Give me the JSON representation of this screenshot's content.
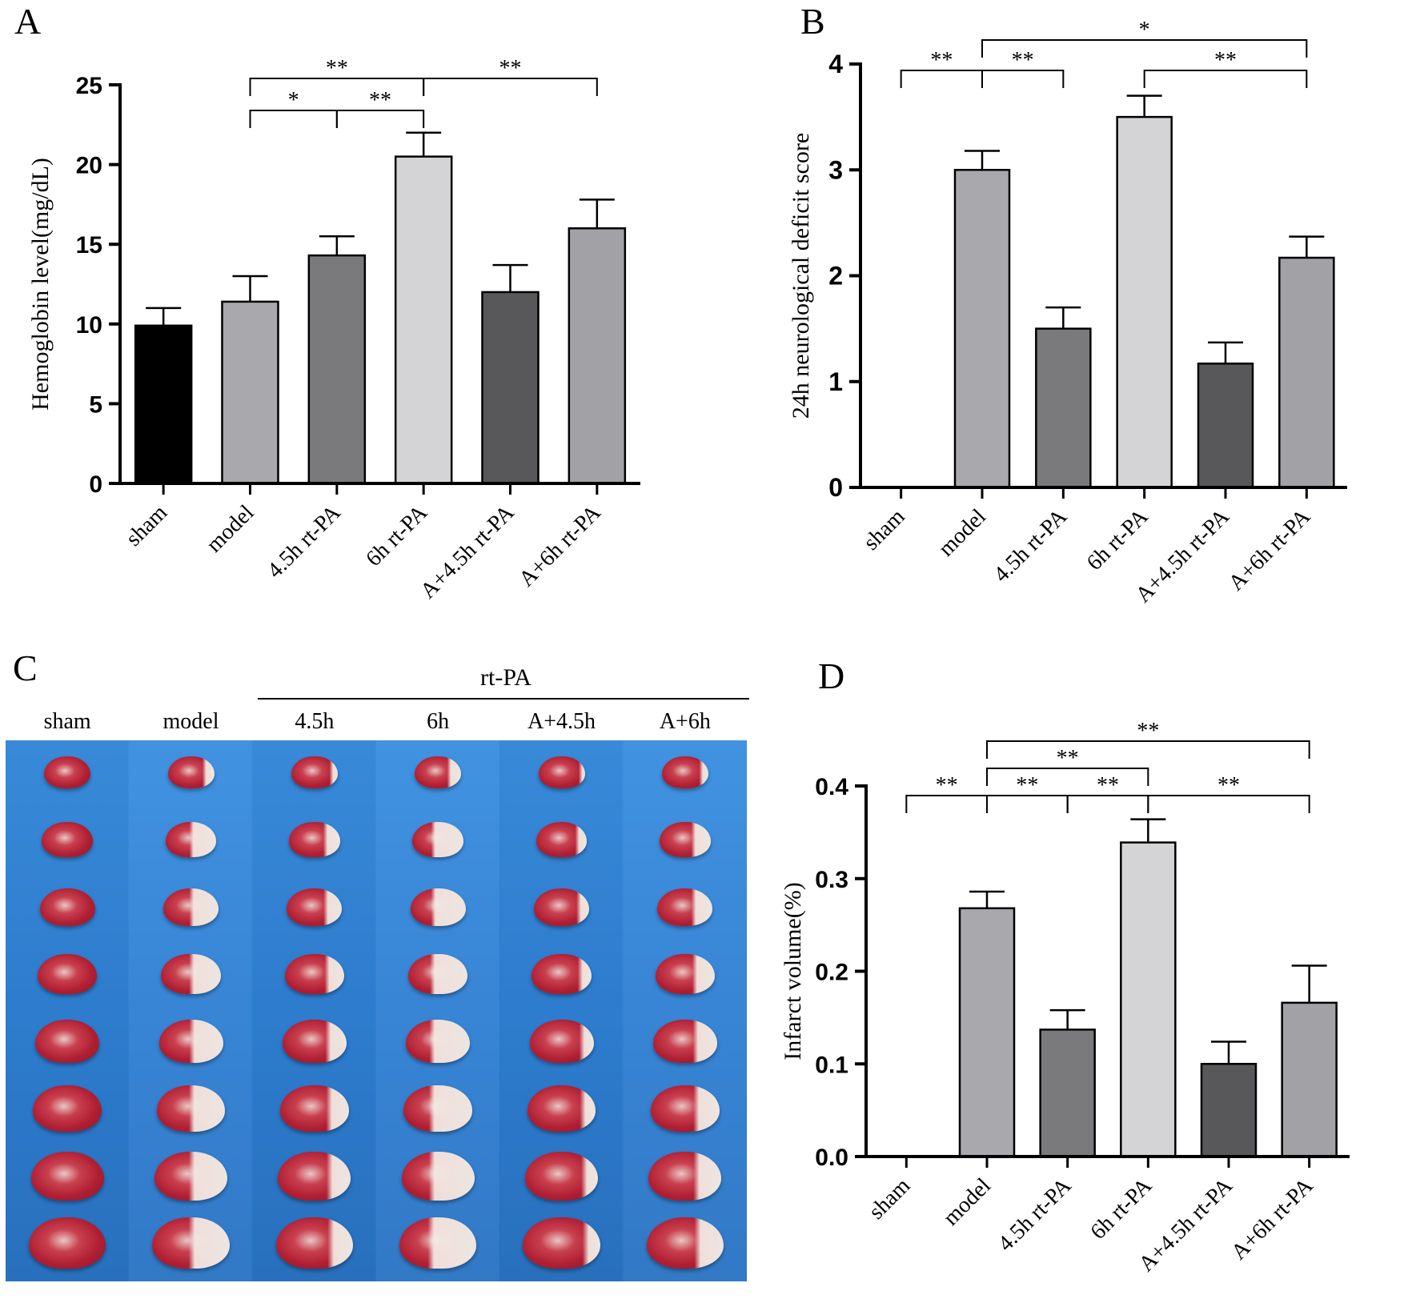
{
  "panels": {
    "a": "A",
    "b": "B",
    "c": "C",
    "d": "D"
  },
  "stars": {
    "one": "*",
    "two": "**"
  },
  "chart_data": [
    {
      "type": "bar",
      "title": "",
      "ylabel": "Hemoglobin level(mg/dL)",
      "xlabel": "",
      "categories": [
        "sham",
        "model",
        "4.5h rt-PA",
        "6h rt-PA",
        "A+4.5h rt-PA",
        "A+6h rt-PA"
      ],
      "values": [
        9.9,
        11.4,
        14.3,
        20.5,
        12.0,
        16.0
      ],
      "errors": [
        1.1,
        1.6,
        1.2,
        1.5,
        1.7,
        1.8
      ],
      "colors": [
        "#000000",
        "#a9a8ad",
        "#7a7a7c",
        "#d4d4d6",
        "#58585a",
        "#a2a1a6"
      ],
      "ylim": [
        0,
        25
      ],
      "yticks": [
        "0",
        "5",
        "10",
        "15",
        "20",
        "25"
      ],
      "significance": [
        {
          "from": 1,
          "to": 3,
          "label": "**",
          "level": 2
        },
        {
          "from": 3,
          "to": 5,
          "label": "**",
          "level": 2
        },
        {
          "from": 1,
          "to": 2,
          "label": "*",
          "level": 1
        },
        {
          "from": 2,
          "to": 3,
          "label": "**",
          "level": 1
        }
      ]
    },
    {
      "type": "bar",
      "title": "",
      "ylabel": "24h neurological deficit score",
      "xlabel": "",
      "categories": [
        "sham",
        "model",
        "4.5h rt-PA",
        "6h rt-PA",
        "A+4.5h rt-PA",
        "A+6h rt-PA"
      ],
      "values": [
        0,
        3.0,
        1.5,
        3.5,
        1.17,
        2.17
      ],
      "errors": [
        0,
        0.18,
        0.2,
        0.2,
        0.2,
        0.2
      ],
      "colors": [
        "#000000",
        "#a9a8ad",
        "#7a7a7c",
        "#d4d4d6",
        "#58585a",
        "#a2a1a6"
      ],
      "ylim": [
        0,
        4
      ],
      "yticks": [
        "0",
        "1",
        "2",
        "3",
        "4"
      ],
      "significance": [
        {
          "from": 1,
          "to": 5,
          "label": "*",
          "level": 2
        },
        {
          "from": 0,
          "to": 1,
          "label": "**",
          "level": 1
        },
        {
          "from": 1,
          "to": 2,
          "label": "**",
          "level": 1
        },
        {
          "from": 3,
          "to": 5,
          "label": "**",
          "level": 1
        }
      ]
    },
    {
      "type": "bar",
      "title": "",
      "ylabel": "Infarct volume(%)",
      "xlabel": "",
      "categories": [
        "sham",
        "model",
        "4.5h rt-PA",
        "6h rt-PA",
        "A+4.5h rt-PA",
        "A+6h rt-PA"
      ],
      "values": [
        0,
        0.268,
        0.137,
        0.339,
        0.1,
        0.166
      ],
      "errors": [
        0,
        0.018,
        0.021,
        0.025,
        0.024,
        0.04
      ],
      "colors": [
        "#000000",
        "#a9a8ad",
        "#7a7a7c",
        "#d4d4d6",
        "#58585a",
        "#a2a1a6"
      ],
      "ylim": [
        0,
        0.4
      ],
      "yticks": [
        "0.0",
        "0.1",
        "0.2",
        "0.3",
        "0.4"
      ],
      "significance": [
        {
          "from": 1,
          "to": 5,
          "label": "**",
          "level": 3
        },
        {
          "from": 1,
          "to": 3,
          "label": "**",
          "level": 2
        },
        {
          "from": 0,
          "to": 1,
          "label": "**",
          "level": 1
        },
        {
          "from": 1,
          "to": 2,
          "label": "**",
          "level": 1
        },
        {
          "from": 2,
          "to": 3,
          "label": "**",
          "level": 1
        },
        {
          "from": 3,
          "to": 5,
          "label": "**",
          "level": 1
        }
      ]
    }
  ],
  "photo": {
    "group_label": "rt-PA",
    "columns": [
      "sham",
      "model",
      "4.5h",
      "6h",
      "A+4.5h",
      "A+6h"
    ],
    "slices_per_column": 8,
    "infarct_fraction": [
      0,
      0.45,
      0.25,
      0.55,
      0.15,
      0.3
    ]
  }
}
